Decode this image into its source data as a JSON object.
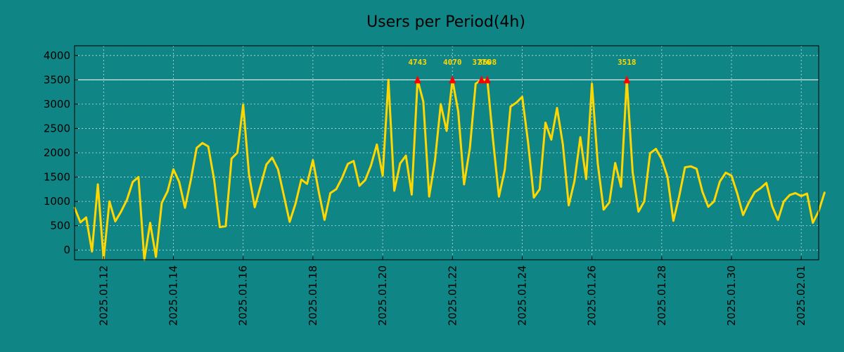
{
  "chart_data": {
    "type": "line",
    "title": "Users per Period(4h)",
    "xlabel": "",
    "ylabel": "",
    "grid": true,
    "x_range": [
      "2025-01-11 04:00",
      "2025-02-01 12:00"
    ],
    "ylim": [
      -200,
      4200
    ],
    "yticks": [
      0,
      500,
      1000,
      1500,
      2000,
      2500,
      3000,
      3500,
      4000
    ],
    "xticks": [
      "2025-01-12",
      "2025-01-14",
      "2025-01-16",
      "2025-01-18",
      "2025-01-20",
      "2025-01-22",
      "2025-01-24",
      "2025-01-26",
      "2025-01-28",
      "2025-01-30",
      "2025-02-01"
    ],
    "threshold": 3500,
    "series": [
      {
        "color": "#ffd700",
        "points": [
          [
            "2025-01-11 04:00",
            870
          ],
          [
            "2025-01-11 08:00",
            570
          ],
          [
            "2025-01-11 12:00",
            670
          ],
          [
            "2025-01-11 16:00",
            -30
          ],
          [
            "2025-01-11 20:00",
            1350
          ],
          [
            "2025-01-12 00:00",
            -180
          ],
          [
            "2025-01-12 04:00",
            1000
          ],
          [
            "2025-01-12 08:00",
            590
          ],
          [
            "2025-01-12 12:00",
            790
          ],
          [
            "2025-01-12 16:00",
            1030
          ],
          [
            "2025-01-12 20:00",
            1400
          ],
          [
            "2025-01-13 00:00",
            1500
          ],
          [
            "2025-01-13 04:00",
            -200
          ],
          [
            "2025-01-13 08:00",
            560
          ],
          [
            "2025-01-13 12:00",
            -140
          ],
          [
            "2025-01-13 16:00",
            970
          ],
          [
            "2025-01-13 20:00",
            1210
          ],
          [
            "2025-01-14 00:00",
            1660
          ],
          [
            "2025-01-14 04:00",
            1400
          ],
          [
            "2025-01-14 08:00",
            870
          ],
          [
            "2025-01-14 12:00",
            1440
          ],
          [
            "2025-01-14 16:00",
            2100
          ],
          [
            "2025-01-14 20:00",
            2200
          ],
          [
            "2025-01-15 00:00",
            2130
          ],
          [
            "2025-01-15 04:00",
            1450
          ],
          [
            "2025-01-15 08:00",
            470
          ],
          [
            "2025-01-15 12:00",
            490
          ],
          [
            "2025-01-15 16:00",
            1880
          ],
          [
            "2025-01-15 20:00",
            2000
          ],
          [
            "2025-01-16 00:00",
            2990
          ],
          [
            "2025-01-16 04:00",
            1560
          ],
          [
            "2025-01-16 08:00",
            880
          ],
          [
            "2025-01-16 12:00",
            1320
          ],
          [
            "2025-01-16 16:00",
            1760
          ],
          [
            "2025-01-16 20:00",
            1900
          ],
          [
            "2025-01-17 00:00",
            1660
          ],
          [
            "2025-01-17 04:00",
            1120
          ],
          [
            "2025-01-17 08:00",
            580
          ],
          [
            "2025-01-17 12:00",
            950
          ],
          [
            "2025-01-17 16:00",
            1450
          ],
          [
            "2025-01-17 20:00",
            1360
          ],
          [
            "2025-01-18 00:00",
            1850
          ],
          [
            "2025-01-18 04:00",
            1200
          ],
          [
            "2025-01-18 08:00",
            620
          ],
          [
            "2025-01-18 12:00",
            1170
          ],
          [
            "2025-01-18 16:00",
            1250
          ],
          [
            "2025-01-18 20:00",
            1480
          ],
          [
            "2025-01-19 00:00",
            1770
          ],
          [
            "2025-01-19 04:00",
            1830
          ],
          [
            "2025-01-19 08:00",
            1320
          ],
          [
            "2025-01-19 12:00",
            1440
          ],
          [
            "2025-01-19 16:00",
            1740
          ],
          [
            "2025-01-19 20:00",
            2170
          ],
          [
            "2025-01-20 00:00",
            1530
          ],
          [
            "2025-01-20 04:00",
            3500
          ],
          [
            "2025-01-20 08:00",
            1220
          ],
          [
            "2025-01-20 12:00",
            1780
          ],
          [
            "2025-01-20 16:00",
            1940
          ],
          [
            "2025-01-20 20:00",
            1140
          ],
          [
            "2025-01-21 00:00",
            3500
          ],
          [
            "2025-01-21 04:00",
            3050
          ],
          [
            "2025-01-21 08:00",
            1100
          ],
          [
            "2025-01-21 12:00",
            1850
          ],
          [
            "2025-01-21 16:00",
            3000
          ],
          [
            "2025-01-21 20:00",
            2450
          ],
          [
            "2025-01-22 00:00",
            3500
          ],
          [
            "2025-01-22 04:00",
            2850
          ],
          [
            "2025-01-22 08:00",
            1350
          ],
          [
            "2025-01-22 12:00",
            2100
          ],
          [
            "2025-01-22 16:00",
            3420
          ],
          [
            "2025-01-22 20:00",
            3500
          ],
          [
            "2025-01-23 00:00",
            3500
          ],
          [
            "2025-01-23 04:00",
            2250
          ],
          [
            "2025-01-23 08:00",
            1100
          ],
          [
            "2025-01-23 12:00",
            1650
          ],
          [
            "2025-01-23 16:00",
            2950
          ],
          [
            "2025-01-23 20:00",
            3030
          ],
          [
            "2025-01-24 00:00",
            3150
          ],
          [
            "2025-01-24 04:00",
            2230
          ],
          [
            "2025-01-24 08:00",
            1080
          ],
          [
            "2025-01-24 12:00",
            1250
          ],
          [
            "2025-01-24 16:00",
            2620
          ],
          [
            "2025-01-24 20:00",
            2270
          ],
          [
            "2025-01-25 00:00",
            2920
          ],
          [
            "2025-01-25 04:00",
            2170
          ],
          [
            "2025-01-25 08:00",
            920
          ],
          [
            "2025-01-25 12:00",
            1420
          ],
          [
            "2025-01-25 16:00",
            2320
          ],
          [
            "2025-01-25 20:00",
            1460
          ],
          [
            "2025-01-26 00:00",
            3420
          ],
          [
            "2025-01-26 04:00",
            1780
          ],
          [
            "2025-01-26 08:00",
            830
          ],
          [
            "2025-01-26 12:00",
            980
          ],
          [
            "2025-01-26 16:00",
            1790
          ],
          [
            "2025-01-26 20:00",
            1300
          ],
          [
            "2025-01-27 00:00",
            3500
          ],
          [
            "2025-01-27 04:00",
            1600
          ],
          [
            "2025-01-27 08:00",
            790
          ],
          [
            "2025-01-27 12:00",
            1000
          ],
          [
            "2025-01-27 16:00",
            1990
          ],
          [
            "2025-01-27 20:00",
            2080
          ],
          [
            "2025-01-28 00:00",
            1870
          ],
          [
            "2025-01-28 04:00",
            1500
          ],
          [
            "2025-01-28 08:00",
            600
          ],
          [
            "2025-01-28 12:00",
            1100
          ],
          [
            "2025-01-28 16:00",
            1700
          ],
          [
            "2025-01-28 20:00",
            1720
          ],
          [
            "2025-01-29 00:00",
            1670
          ],
          [
            "2025-01-29 04:00",
            1200
          ],
          [
            "2025-01-29 08:00",
            890
          ],
          [
            "2025-01-29 12:00",
            1000
          ],
          [
            "2025-01-29 16:00",
            1410
          ],
          [
            "2025-01-29 20:00",
            1590
          ],
          [
            "2025-01-30 00:00",
            1530
          ],
          [
            "2025-01-30 04:00",
            1160
          ],
          [
            "2025-01-30 08:00",
            720
          ],
          [
            "2025-01-30 12:00",
            980
          ],
          [
            "2025-01-30 16:00",
            1190
          ],
          [
            "2025-01-30 20:00",
            1270
          ],
          [
            "2025-01-31 00:00",
            1380
          ],
          [
            "2025-01-31 04:00",
            900
          ],
          [
            "2025-01-31 08:00",
            620
          ],
          [
            "2025-01-31 12:00",
            1000
          ],
          [
            "2025-01-31 16:00",
            1130
          ],
          [
            "2025-01-31 20:00",
            1170
          ],
          [
            "2025-02-01 00:00",
            1110
          ],
          [
            "2025-02-01 04:00",
            1160
          ],
          [
            "2025-02-01 08:00",
            560
          ],
          [
            "2025-02-01 12:00",
            800
          ],
          [
            "2025-02-01 16:00",
            1180
          ]
        ]
      }
    ],
    "peaks": [
      {
        "x": "2025-01-21 00:00",
        "y": 3500,
        "label": "4743"
      },
      {
        "x": "2025-01-22 00:00",
        "y": 3500,
        "label": "4070"
      },
      {
        "x": "2025-01-22 20:00",
        "y": 3500,
        "label": "3776"
      },
      {
        "x": "2025-01-23 00:00",
        "y": 3500,
        "label": "3608"
      },
      {
        "x": "2025-01-27 00:00",
        "y": 3500,
        "label": "3518"
      }
    ],
    "colors": {
      "background": "#108585",
      "line": "#ffd700",
      "threshold_line": "#ffffff",
      "marker": "#ff0000",
      "peak_label": "#ffd700",
      "grid": "#ffffff",
      "text": "#000000"
    }
  }
}
